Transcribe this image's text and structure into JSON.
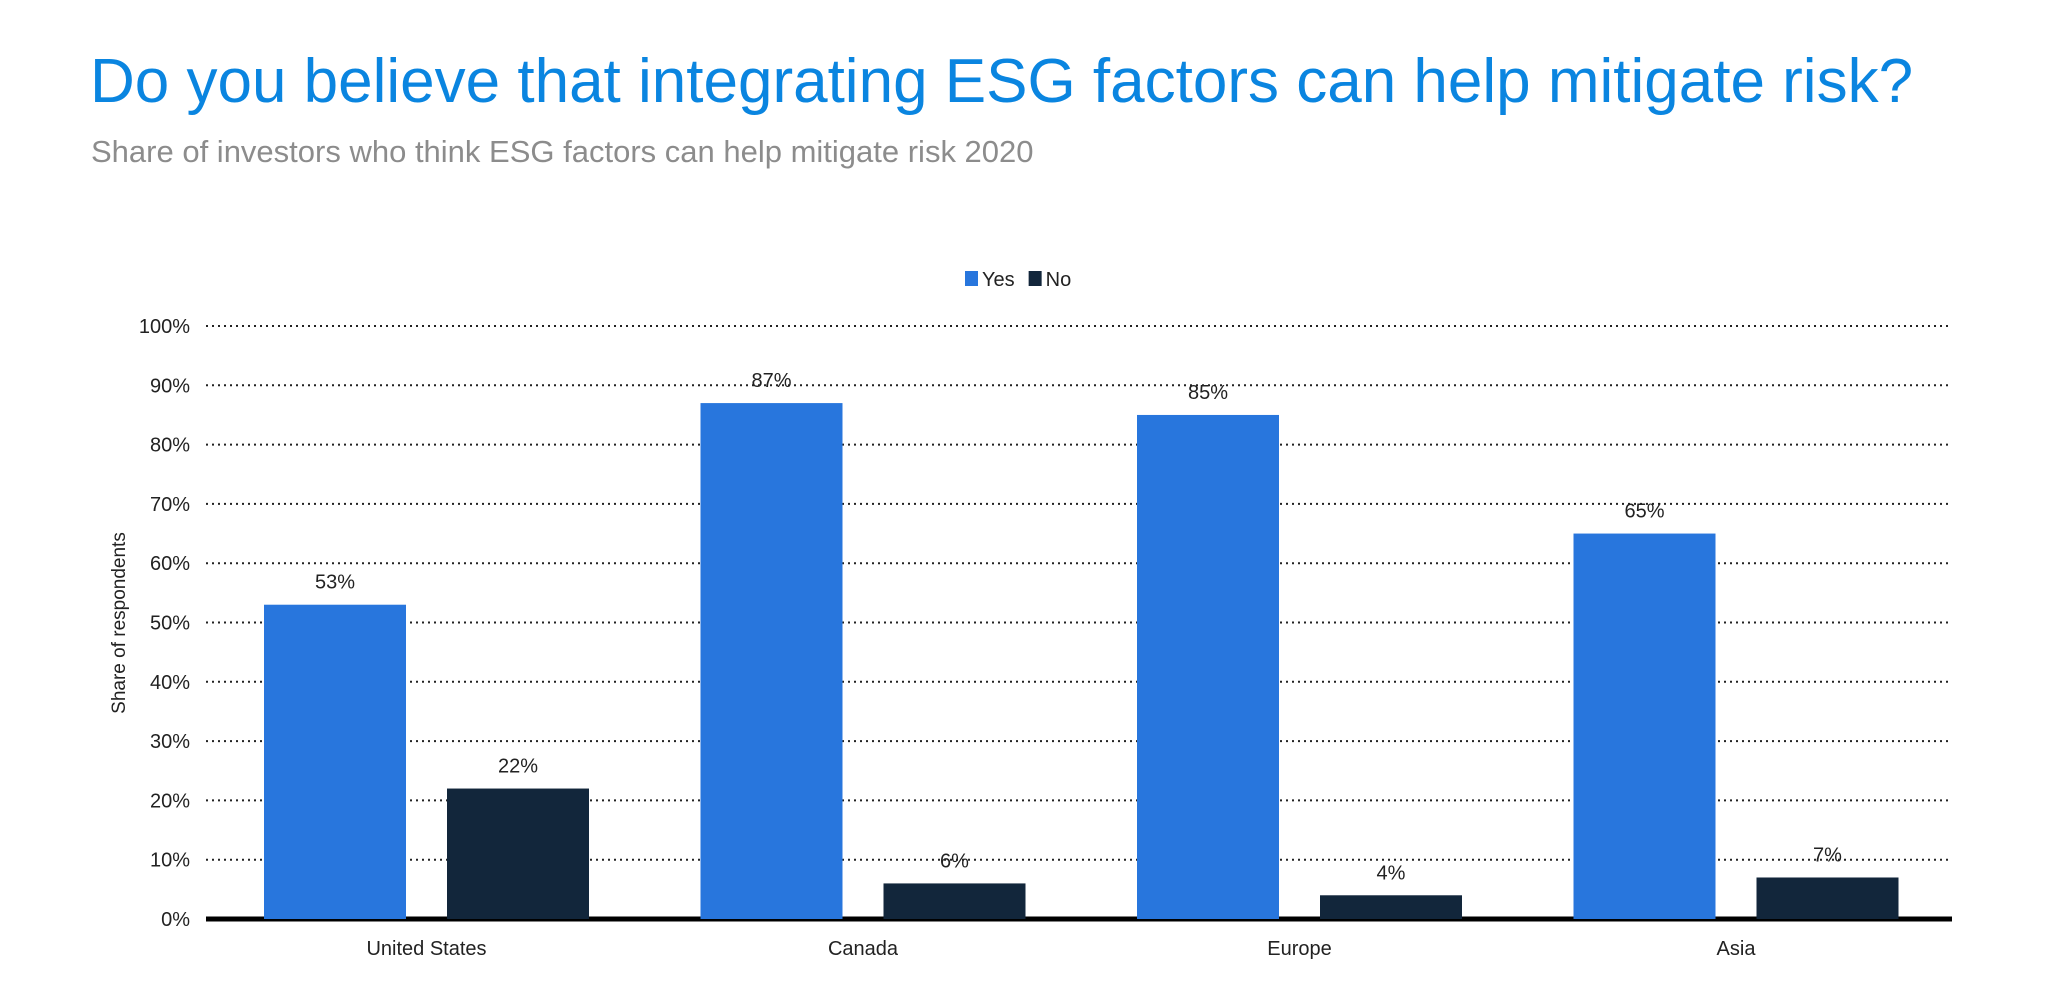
{
  "chart_data": {
    "type": "bar",
    "title": "Do you believe that integrating ESG factors can help mitigate risk?",
    "subtitle": "Share of investors who think ESG factors can help mitigate risk 2020",
    "xlabel": "",
    "ylabel": "Share of respondents",
    "ylim": [
      0,
      100
    ],
    "yticks": [
      "0%",
      "10%",
      "20%",
      "30%",
      "40%",
      "50%",
      "60%",
      "70%",
      "80%",
      "90%",
      "100%"
    ],
    "grid": true,
    "legend_position": "top-center",
    "categories": [
      "United States",
      "Canada",
      "Europe",
      "Asia"
    ],
    "series": [
      {
        "name": "Yes",
        "color": "#2876dd",
        "values": [
          53,
          87,
          85,
          65
        ],
        "labels": [
          "53%",
          "87%",
          "85%",
          "65%"
        ]
      },
      {
        "name": "No",
        "color": "#12263b",
        "values": [
          22,
          6,
          4,
          7
        ],
        "labels": [
          "22%",
          "6%",
          "4%",
          "7%"
        ]
      }
    ]
  }
}
